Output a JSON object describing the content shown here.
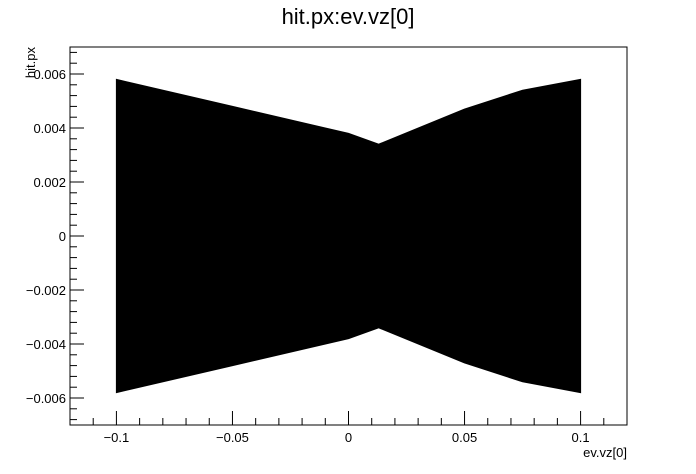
{
  "chart_data": {
    "type": "scatter",
    "title": "hit.px:ev.vz[0]",
    "xlabel": "ev.vz[0]",
    "ylabel": "hit.px",
    "xlim": [
      -0.12,
      0.12
    ],
    "ylim": [
      -0.007,
      0.007
    ],
    "x_major_ticks": [
      -0.1,
      -0.05,
      0,
      0.05,
      0.1
    ],
    "x_tick_labels": [
      "−0.1",
      "−0.05",
      "0",
      "0.05",
      "0.1"
    ],
    "y_major_ticks": [
      -0.006,
      -0.004,
      -0.002,
      0,
      0.002,
      0.004,
      0.006
    ],
    "y_tick_labels": [
      "−0.006",
      "−0.004",
      "−0.002",
      "0",
      "0.002",
      "0.004",
      "0.006"
    ],
    "grid": false,
    "legend": "none",
    "marker_color": "#000000",
    "series": [
      {
        "envelope_upper": [
          {
            "x": -0.1,
            "y": 0.0058
          },
          {
            "x": -0.05,
            "y": 0.0048
          },
          {
            "x": 0.0,
            "y": 0.0038
          },
          {
            "x": 0.013,
            "y": 0.0034
          },
          {
            "x": 0.05,
            "y": 0.0047
          },
          {
            "x": 0.075,
            "y": 0.0054
          },
          {
            "x": 0.1,
            "y": 0.0058
          }
        ],
        "envelope_lower": [
          {
            "x": -0.1,
            "y": -0.0058
          },
          {
            "x": -0.05,
            "y": -0.0048
          },
          {
            "x": 0.0,
            "y": -0.0038
          },
          {
            "x": 0.013,
            "y": -0.0034
          },
          {
            "x": 0.05,
            "y": -0.0047
          },
          {
            "x": 0.075,
            "y": -0.0054
          },
          {
            "x": 0.1,
            "y": -0.0058
          }
        ]
      }
    ]
  }
}
